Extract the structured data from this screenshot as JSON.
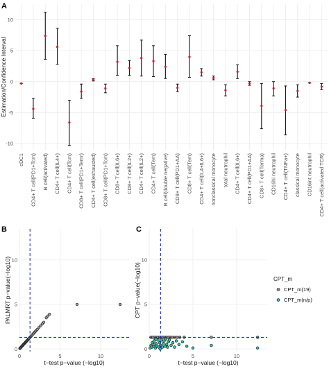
{
  "chart_data": [
    {
      "panel": "A",
      "type": "errorbar",
      "ylabel": "Estimation/Confidence Interval",
      "xlabel": "",
      "ylim": [
        -11,
        12.5
      ],
      "yticks": [
        -10,
        -5,
        0,
        5,
        10
      ],
      "grid": true,
      "point_color": "#d7191c",
      "categories": [
        {
          "name": "cDC1",
          "est": -0.3,
          "lo": -0.3,
          "hi": -0.3
        },
        {
          "name": "CD4+ T cell(PD1+Tcm)",
          "est": -4.4,
          "lo": -5.9,
          "hi": -2.7
        },
        {
          "name": "B cell(activated)",
          "est": 7.4,
          "lo": 3.6,
          "hi": 11.2
        },
        {
          "name": "CD4+ T cell(IL4+)",
          "est": 5.6,
          "lo": 2.8,
          "hi": 8.6
        },
        {
          "name": "CD4+ T cell(Tcm)",
          "est": -6.6,
          "lo": -10.3,
          "hi": -3.0
        },
        {
          "name": "CD8+ T cell(PD1+Temr)",
          "est": -1.6,
          "lo": -2.7,
          "hi": -0.4
        },
        {
          "name": "CD4+ T cell(exhausted)",
          "est": 0.3,
          "lo": 0.1,
          "hi": 0.5
        },
        {
          "name": "CD8+ T cell(PD1+Tcm)",
          "est": -1.1,
          "lo": -1.8,
          "hi": -0.4
        },
        {
          "name": "CD8+ T cell(IL6+)",
          "est": 3.2,
          "lo": 1.0,
          "hi": 5.8
        },
        {
          "name": "CD8+ T cell(IL2+)",
          "est": 2.2,
          "lo": 1.0,
          "hi": 3.4
        },
        {
          "name": "CD4+ T cell(IL2+)",
          "est": 3.8,
          "lo": 0.9,
          "hi": 6.7
        },
        {
          "name": "CD4+ T cell(Tem)",
          "est": 3.3,
          "lo": 0.8,
          "hi": 5.8
        },
        {
          "name": "B cell(double negative)",
          "est": 2.4,
          "lo": 0.5,
          "hi": 4.4
        },
        {
          "name": "CD8+ T cell(PD1+AA)",
          "est": -1.0,
          "lo": -1.6,
          "hi": -0.4
        },
        {
          "name": "CD8+ T cell(Tem)",
          "est": 4.0,
          "lo": 0.7,
          "hi": 7.4
        },
        {
          "name": "CD4+ T cell(IL4+IL6+)",
          "est": 1.5,
          "lo": 0.9,
          "hi": 2.1
        },
        {
          "name": "nonclassical monocyte",
          "est": 0.6,
          "lo": 0.3,
          "hi": 0.9
        },
        {
          "name": "total neutrophil",
          "est": -1.4,
          "lo": -2.3,
          "hi": -0.5
        },
        {
          "name": "CD4+ T cell(IL6+)",
          "est": 1.6,
          "lo": 0.5,
          "hi": 2.7
        },
        {
          "name": "CD4+ T cell(PD1+AA)",
          "est": -0.3,
          "lo": -0.6,
          "hi": 0.0
        },
        {
          "name": "CD8+ T cell(Terma)",
          "est": -3.9,
          "lo": -7.6,
          "hi": -0.3
        },
        {
          "name": "CD16hi neutrophil",
          "est": -1.1,
          "lo": -2.3,
          "hi": 0.0
        },
        {
          "name": "CD4+ T cell(TNFa+)",
          "est": -4.6,
          "lo": -8.6,
          "hi": -0.7
        },
        {
          "name": "classical monocyte",
          "est": -1.5,
          "lo": -2.5,
          "hi": -0.5
        },
        {
          "name": "CD16int neutrophil",
          "est": -0.2,
          "lo": -0.2,
          "hi": -0.2
        },
        {
          "name": "CD4+ T cell(activated TCR)",
          "est": -0.8,
          "lo": -1.3,
          "hi": -0.3
        }
      ]
    },
    {
      "panel": "B",
      "type": "scatter",
      "xlabel": "t−test p−value (−log10)",
      "ylabel": "PALMRT p−value(−log10)",
      "xlim": [
        0,
        13.5
      ],
      "ylim": [
        -0.3,
        13.5
      ],
      "xticks": [
        0,
        5,
        10
      ],
      "yticks": [
        0,
        5,
        10
      ],
      "vline": 1.3,
      "hline": 1.3,
      "points": [
        [
          0.05,
          0.05
        ],
        [
          0.1,
          0.1
        ],
        [
          0.15,
          0.12
        ],
        [
          0.2,
          0.2
        ],
        [
          0.25,
          0.24
        ],
        [
          0.3,
          0.3
        ],
        [
          0.35,
          0.33
        ],
        [
          0.4,
          0.4
        ],
        [
          0.45,
          0.45
        ],
        [
          0.5,
          0.5
        ],
        [
          0.55,
          0.55
        ],
        [
          0.6,
          0.6
        ],
        [
          0.65,
          0.66
        ],
        [
          0.7,
          0.7
        ],
        [
          0.75,
          0.74
        ],
        [
          0.8,
          0.8
        ],
        [
          0.85,
          0.85
        ],
        [
          0.9,
          0.9
        ],
        [
          0.95,
          0.95
        ],
        [
          1.0,
          1.0
        ],
        [
          1.05,
          1.05
        ],
        [
          1.1,
          1.1
        ],
        [
          1.15,
          1.15
        ],
        [
          1.2,
          1.2
        ],
        [
          1.3,
          1.3
        ],
        [
          1.4,
          1.4
        ],
        [
          1.5,
          1.5
        ],
        [
          1.6,
          1.6
        ],
        [
          1.7,
          1.7
        ],
        [
          1.8,
          1.8
        ],
        [
          1.9,
          1.9
        ],
        [
          2.0,
          2.0
        ],
        [
          2.1,
          2.1
        ],
        [
          2.2,
          2.2
        ],
        [
          2.4,
          2.4
        ],
        [
          2.6,
          2.6
        ],
        [
          2.8,
          2.8
        ],
        [
          3.0,
          3.0
        ],
        [
          3.3,
          3.5
        ],
        [
          3.5,
          3.7
        ],
        [
          3.7,
          3.9
        ],
        [
          7.1,
          5.0
        ],
        [
          12.4,
          5.0
        ]
      ]
    },
    {
      "panel": "C",
      "type": "scatter",
      "xlabel": "t−test p−value (−log10)",
      "ylabel": "CPT p−value(−log10)",
      "xlim": [
        0,
        13.5
      ],
      "ylim": [
        -0.3,
        13.5
      ],
      "xticks": [
        0,
        5,
        10
      ],
      "yticks": [
        0,
        5,
        10
      ],
      "vline": 1.3,
      "hline": 1.3,
      "legend": {
        "title": "CPT_m",
        "position": "right",
        "entries": [
          {
            "label": "CPT_m(19)",
            "color": "#8c8c8c"
          },
          {
            "label": "CPT_m(n/p)",
            "color": "#3cb89b"
          }
        ]
      },
      "series": [
        {
          "name": "CPT_m(19)",
          "color": "#8c8c8c",
          "points": [
            [
              0.2,
              1.3
            ],
            [
              0.4,
              1.3
            ],
            [
              0.6,
              1.3
            ],
            [
              0.8,
              1.3
            ],
            [
              1.0,
              1.3
            ],
            [
              1.2,
              1.3
            ],
            [
              1.4,
              1.3
            ],
            [
              1.6,
              1.3
            ],
            [
              1.8,
              1.3
            ],
            [
              2.0,
              1.3
            ],
            [
              2.2,
              1.3
            ],
            [
              2.4,
              1.3
            ],
            [
              2.6,
              1.3
            ],
            [
              2.9,
              1.3
            ],
            [
              3.2,
              1.3
            ],
            [
              3.5,
              1.3
            ],
            [
              4.0,
              1.3
            ],
            [
              7.1,
              1.3
            ],
            [
              12.4,
              1.3
            ]
          ]
        },
        {
          "name": "CPT_m(n/p)",
          "color": "#3cb89b",
          "points": [
            [
              0.1,
              0.1
            ],
            [
              0.2,
              0.4
            ],
            [
              0.3,
              0.2
            ],
            [
              0.35,
              0.7
            ],
            [
              0.5,
              0.3
            ],
            [
              0.55,
              0.9
            ],
            [
              0.6,
              0.5
            ],
            [
              0.7,
              0.1
            ],
            [
              0.8,
              0.6
            ],
            [
              0.9,
              0.3
            ],
            [
              1.0,
              1.0
            ],
            [
              1.1,
              0.2
            ],
            [
              1.2,
              0.7
            ],
            [
              1.3,
              0.4
            ],
            [
              1.4,
              1.0
            ],
            [
              1.5,
              0.2
            ],
            [
              1.6,
              0.6
            ],
            [
              1.7,
              0.9
            ],
            [
              1.8,
              0.3
            ],
            [
              1.9,
              1.1
            ],
            [
              2.0,
              0.5
            ],
            [
              2.1,
              0.2
            ],
            [
              2.2,
              0.8
            ],
            [
              2.3,
              1.0
            ],
            [
              2.5,
              0.4
            ],
            [
              2.7,
              0.7
            ],
            [
              2.9,
              0.2
            ],
            [
              3.1,
              0.9
            ],
            [
              3.4,
              0.5
            ],
            [
              3.8,
              0.8
            ],
            [
              4.3,
              0.3
            ],
            [
              5.0,
              0.1
            ],
            [
              7.1,
              0.4
            ],
            [
              12.4,
              0.1
            ],
            [
              1.25,
              0.0
            ],
            [
              0.75,
              1.1
            ]
          ]
        }
      ]
    }
  ]
}
